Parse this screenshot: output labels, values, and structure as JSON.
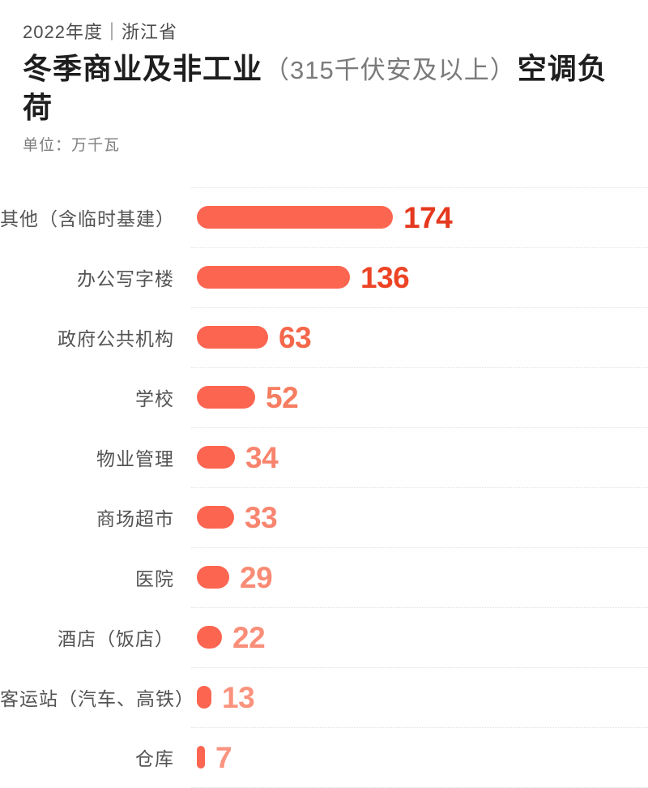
{
  "header": {
    "eyebrow": "2022年度｜浙江省",
    "title_bold_1": "冬季商业及非工业",
    "title_paren": "（315千伏安及以上）",
    "title_bold_2": "空调负荷",
    "unit_label": "单位：万千瓦"
  },
  "colors": {
    "background": "#ffffff",
    "bar_fill": "#fc6550",
    "divider": "#e4e4e4",
    "category_text": "#545454",
    "title_text": "#1e1e1e",
    "muted_text": "#7b7b7b"
  },
  "chart_data": {
    "type": "bar",
    "orientation": "horizontal",
    "title": "2022年度｜浙江省 冬季商业及非工业（315千伏安及以上）空调负荷",
    "xlabel": "",
    "ylabel": "",
    "unit": "万千瓦",
    "xlim": [
      0,
      180
    ],
    "grid": false,
    "legend": "none",
    "categories": [
      "其他（含临时基建）",
      "办公写字楼",
      "政府公共机构",
      "学校",
      "物业管理",
      "商场超市",
      "医院",
      "酒店（饭店）",
      "客运站（汽车、高铁）",
      "仓库"
    ],
    "values": [
      174,
      136,
      63,
      52,
      34,
      33,
      29,
      22,
      13,
      7
    ],
    "value_label_colors": [
      "#e5381e",
      "#ed4426",
      "#f4674a",
      "#f67d61",
      "#f8846d",
      "#f8856f",
      "#f98b75",
      "#f98e79",
      "#fa927d",
      "#fa9480"
    ]
  }
}
